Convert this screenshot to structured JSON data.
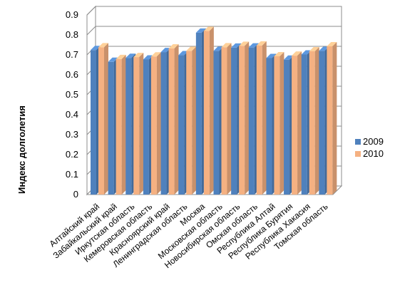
{
  "chart_data": {
    "type": "bar",
    "ylabel": "Индекс долголетия",
    "ylim": [
      0,
      0.9
    ],
    "yticks": [
      "0",
      "0.1",
      "0.2",
      "0.3",
      "0.4",
      "0.5",
      "0.6",
      "0.7",
      "0.8",
      "0.9"
    ],
    "grid": true,
    "legend_position": "right",
    "categories": [
      "Алтайский край",
      "Забайкальский край",
      "Иркутская область",
      "Кемеровская область",
      "Красноярский край",
      "Ленинградская область",
      "Москва",
      "Московская область",
      "Новосибирская область",
      "Омская область",
      "Республика Алтай",
      "Республика Бурятия",
      "Республика Хакасия",
      "Томская область"
    ],
    "series": [
      {
        "name": "2009",
        "color": "#4f81bd",
        "values": [
          0.724,
          0.665,
          0.685,
          0.677,
          0.714,
          0.698,
          0.811,
          0.72,
          0.736,
          0.737,
          0.684,
          0.676,
          0.702,
          0.72
        ]
      },
      {
        "name": "2010",
        "color": "#f5b182",
        "values": [
          0.738,
          0.679,
          0.689,
          0.692,
          0.732,
          0.72,
          0.82,
          0.738,
          0.745,
          0.747,
          0.693,
          0.696,
          0.718,
          0.743
        ]
      }
    ]
  }
}
